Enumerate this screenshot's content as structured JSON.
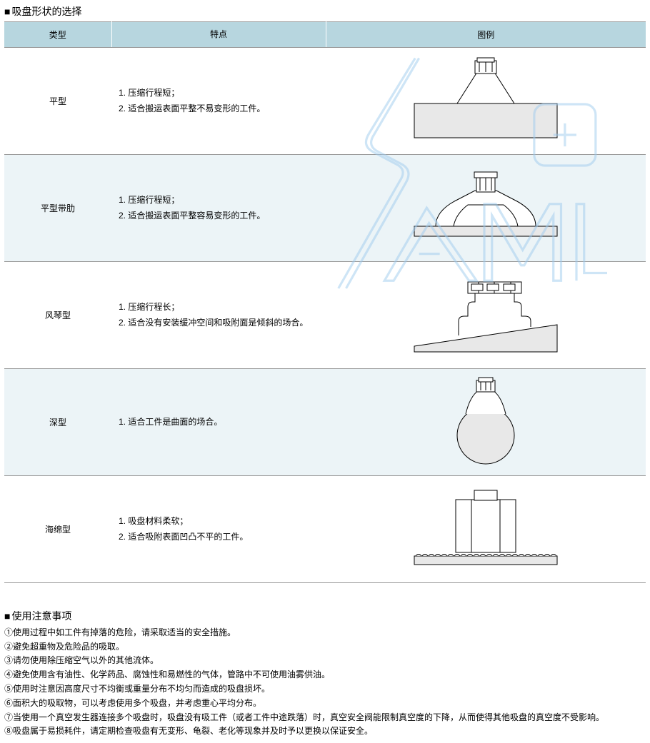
{
  "colors": {
    "header_bg": "#b7d6df",
    "alt_row_bg": "#ecf4f7",
    "border": "#999999",
    "watermark": "#9fccef",
    "shape_fill": "#e8e8e8",
    "shape_stroke": "#000000"
  },
  "title1": "吸盘形状的选择",
  "headers": {
    "type": "类型",
    "feat": "特点",
    "img": "图例"
  },
  "rows": [
    {
      "type": "平型",
      "features": [
        "1. 压缩行程短；",
        "2. 适合搬运表面平整不易变形的工件。"
      ],
      "svg_kind": "flat"
    },
    {
      "type": "平型带肋",
      "features": [
        "1. 压缩行程短；",
        "2. 适合搬运表面平整容易变形的工件。"
      ],
      "svg_kind": "flat_rib"
    },
    {
      "type": "风琴型",
      "features": [
        "1. 压缩行程长；",
        "2. 适合没有安装缓冲空间和吸附面是倾斜的场合。"
      ],
      "svg_kind": "bellows"
    },
    {
      "type": "深型",
      "features": [
        "1. 适合工件是曲面的场合。"
      ],
      "svg_kind": "deep"
    },
    {
      "type": "海绵型",
      "features": [
        "1. 吸盘材料柔软；",
        "2. 适合吸附表面凹凸不平的工件。"
      ],
      "svg_kind": "sponge"
    }
  ],
  "title2": "使用注意事项",
  "notes": [
    "①使用过程中如工件有掉落的危险，请采取适当的安全措施。",
    "②避免超重物及危险品的吸取。",
    "③请勿使用除压缩空气以外的其他流体。",
    "④避免使用含有油性、化学药品、腐蚀性和易燃性的气体，管路中不可使用油雾供油。",
    "⑤使用时注意因高度尺寸不均衡或重量分布不均匀而造成的吸盘损坏。",
    "⑥面积大的吸取物，可以考虑使用多个吸盘，并考虑重心平均分布。",
    "⑦当使用一个真空发生器连接多个吸盘时，吸盘没有吸工件（或者工件中途跌落）时，真空安全阀能限制真空度的下降，从而使得其他吸盘的真空度不受影响。",
    "⑧吸盘属于易损耗件，请定期检查吸盘有无变形、龟裂、老化等现象并及时予以更换以保证安全。"
  ]
}
